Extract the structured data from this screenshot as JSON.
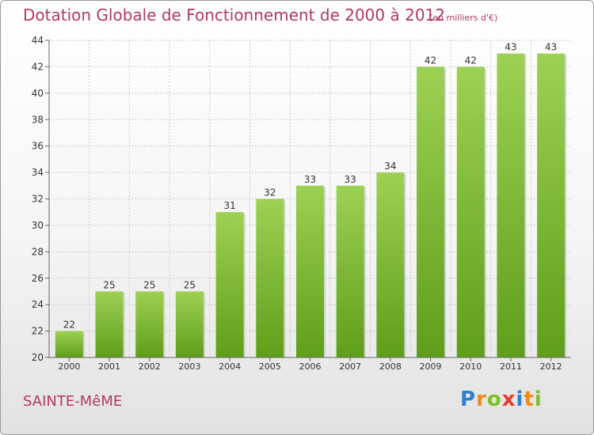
{
  "chart_data": {
    "type": "bar",
    "title": "Dotation Globale de Fonctionnement de 2000 à 2012",
    "unit_note": "(en milliers d'€)",
    "categories": [
      "2000",
      "2001",
      "2002",
      "2003",
      "2004",
      "2005",
      "2006",
      "2007",
      "2008",
      "2009",
      "2010",
      "2011",
      "2012"
    ],
    "values": [
      22,
      25,
      25,
      25,
      31,
      32,
      33,
      33,
      34,
      42,
      42,
      43,
      43
    ],
    "ylim": [
      20,
      44
    ],
    "yticks": [
      20,
      22,
      24,
      26,
      28,
      30,
      32,
      34,
      36,
      38,
      40,
      42,
      44
    ],
    "grid": true,
    "colors": {
      "bar_top": "#9dd155",
      "bar_bottom": "#5f9e1a",
      "grid": "#cccccc",
      "axis": "#666666",
      "title": "#b03a5b"
    }
  },
  "footer": {
    "place": "SAINTE-MêME",
    "brand_letters": [
      "P",
      "r",
      "o",
      "x",
      "i",
      "t",
      "i"
    ]
  }
}
